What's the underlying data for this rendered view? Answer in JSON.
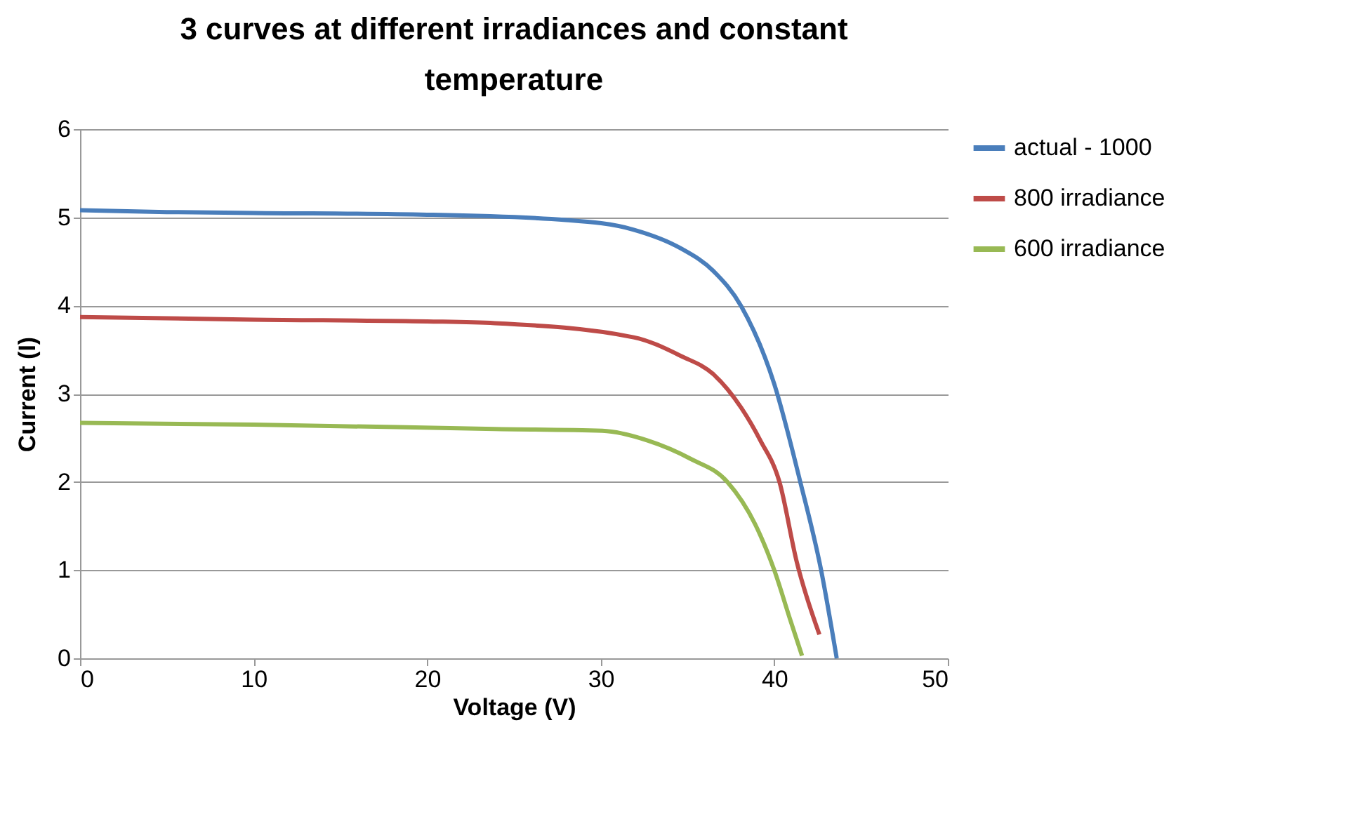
{
  "chart_data": {
    "type": "line",
    "title": "3 curves at different irradiances and constant temperature",
    "xlabel": "Voltage (V)",
    "ylabel": "Current (I)",
    "xlim": [
      0,
      50
    ],
    "xticks": [
      0,
      10,
      20,
      30,
      40,
      50
    ],
    "ylim": [
      0,
      6
    ],
    "yticks": [
      0,
      1,
      2,
      3,
      4,
      5,
      6
    ],
    "grid": "y",
    "legend": "right",
    "marker": "none",
    "line_style": "solid",
    "series": [
      {
        "name": "actual - 1000",
        "color": "#4a7ebb",
        "x": [
          0,
          5,
          10,
          20,
          28,
          31.9,
          34.6,
          36.5,
          38.1,
          40.0,
          41.5,
          42.7,
          43.6
        ],
        "values": [
          5.08,
          5.06,
          5.05,
          5.03,
          4.97,
          4.86,
          4.65,
          4.39,
          3.99,
          3.11,
          2.0,
          1.0,
          0
        ]
      },
      {
        "name": "800 irradiance",
        "color": "#be4b48",
        "x": [
          0,
          10,
          20,
          23.9,
          31.9,
          34.6,
          36.5,
          38.1,
          39.2,
          40.3,
          41.3,
          42.6
        ],
        "values": [
          3.87,
          3.84,
          3.82,
          3.8,
          3.64,
          3.43,
          3.22,
          2.84,
          2.47,
          2.0,
          1.09,
          0.27
        ]
      },
      {
        "name": "600 irradiance",
        "color": "#98b954",
        "x": [
          0,
          10,
          23.9,
          30.1,
          32.7,
          35.2,
          37.3,
          38.9,
          40.0,
          40.9,
          41.6
        ],
        "values": [
          2.67,
          2.65,
          2.6,
          2.58,
          2.47,
          2.26,
          2.0,
          1.52,
          1.0,
          0.45,
          0.03
        ]
      }
    ]
  }
}
